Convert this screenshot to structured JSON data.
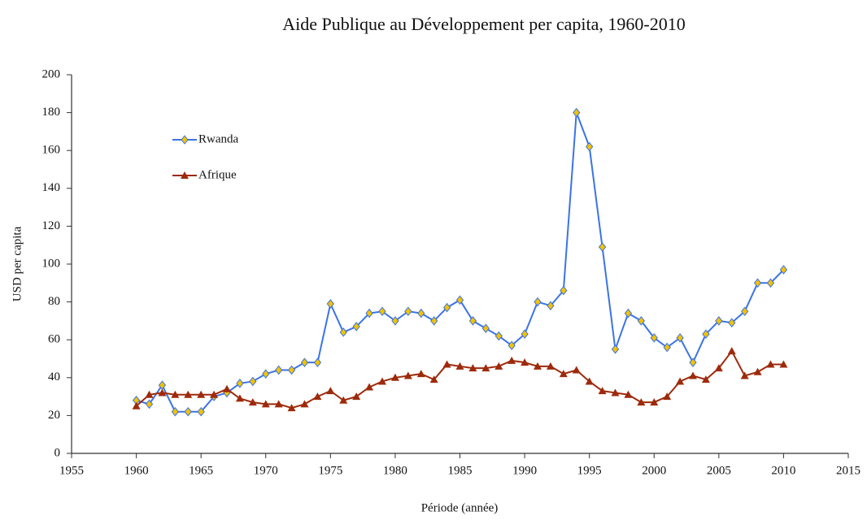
{
  "chart_data": {
    "type": "line",
    "title": "Aide Publique au Développement per capita, 1960-2010",
    "x_label": "Période (année)",
    "y_label": "USD per capita",
    "x": [
      1960,
      1961,
      1962,
      1963,
      1964,
      1965,
      1966,
      1967,
      1968,
      1969,
      1970,
      1971,
      1972,
      1973,
      1974,
      1975,
      1976,
      1977,
      1978,
      1979,
      1980,
      1981,
      1982,
      1983,
      1984,
      1985,
      1986,
      1987,
      1988,
      1989,
      1990,
      1991,
      1992,
      1993,
      1994,
      1995,
      1996,
      1997,
      1998,
      1999,
      2000,
      2001,
      2002,
      2003,
      2004,
      2005,
      2006,
      2007,
      2008,
      2009,
      2010
    ],
    "series": [
      {
        "name": "Rwanda",
        "color": "#3b73e6",
        "marker": "diamond",
        "marker_color": "#f2c200",
        "values": [
          28,
          26,
          36,
          22,
          22,
          22,
          30,
          32,
          37,
          38,
          42,
          44,
          44,
          48,
          48,
          79,
          64,
          67,
          74,
          75,
          70,
          75,
          74,
          70,
          77,
          81,
          70,
          66,
          62,
          57,
          63,
          80,
          78,
          86,
          180,
          162,
          109,
          55,
          74,
          70,
          61,
          56,
          61,
          48,
          63,
          70,
          69,
          75,
          90,
          90,
          97
        ]
      },
      {
        "name": "Afrique",
        "color": "#9e2a0b",
        "marker": "triangle",
        "marker_color": "#9e2a0b",
        "values": [
          25,
          31,
          32,
          31,
          31,
          31,
          31,
          34,
          29,
          27,
          26,
          26,
          24,
          26,
          30,
          33,
          28,
          30,
          35,
          38,
          40,
          41,
          42,
          39,
          47,
          46,
          45,
          45,
          46,
          49,
          48,
          46,
          46,
          42,
          44,
          38,
          33,
          32,
          31,
          27,
          27,
          30,
          38,
          41,
          39,
          45,
          54,
          41,
          43,
          47,
          47
        ]
      }
    ],
    "xlim": [
      1955,
      2015
    ],
    "xticks": [
      1955,
      1960,
      1965,
      1970,
      1975,
      1980,
      1985,
      1990,
      1995,
      2000,
      2005,
      2010,
      2015
    ],
    "ylim": [
      0,
      200
    ],
    "yticks": [
      0,
      20,
      40,
      60,
      80,
      100,
      120,
      140,
      160,
      180,
      200
    ],
    "grid": false,
    "legend": "upper left"
  }
}
